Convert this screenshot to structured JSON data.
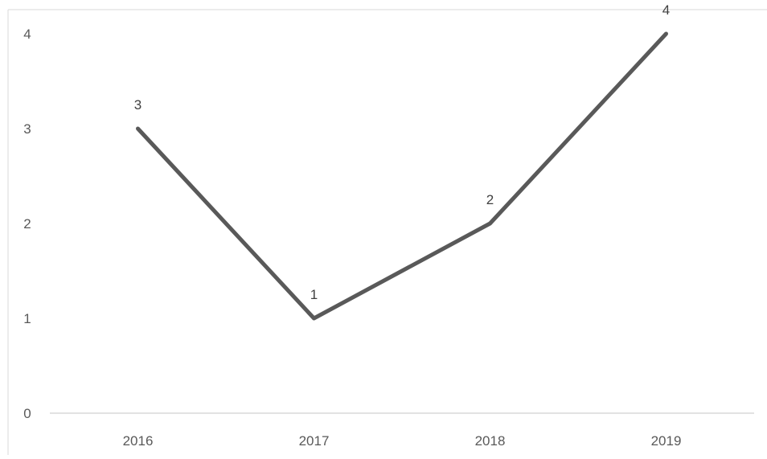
{
  "chart_data": {
    "type": "line",
    "title": "",
    "xlabel": "",
    "ylabel": "",
    "categories": [
      "2016",
      "2017",
      "2018",
      "2019"
    ],
    "series": [
      {
        "values": [
          3,
          1,
          2,
          4
        ],
        "color": "#595959"
      }
    ],
    "ylim": [
      0,
      4
    ],
    "yticks": [
      "0",
      "1",
      "2",
      "3",
      "4"
    ],
    "grid": false,
    "legend": "none",
    "data_labels": true
  }
}
